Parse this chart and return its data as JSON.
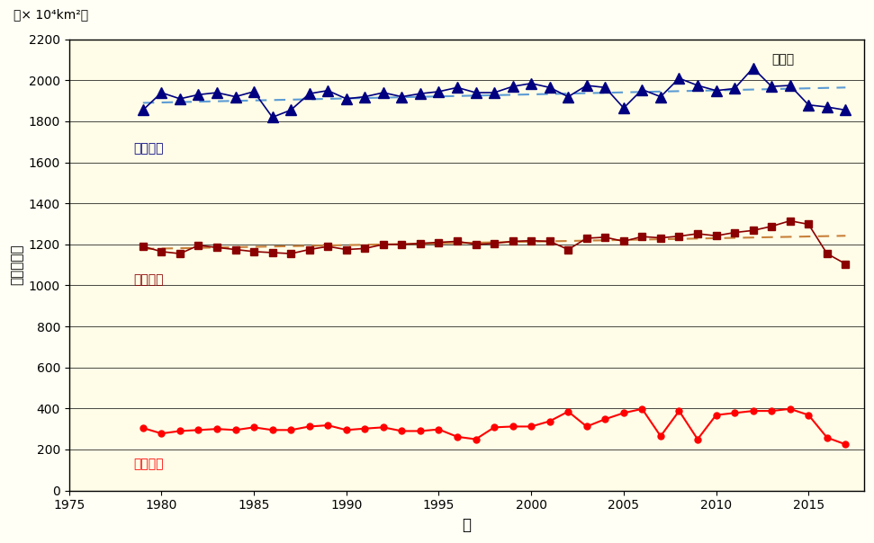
{
  "years": [
    1979,
    1980,
    1981,
    1982,
    1983,
    1984,
    1985,
    1986,
    1987,
    1988,
    1989,
    1990,
    1991,
    1992,
    1993,
    1994,
    1995,
    1996,
    1997,
    1998,
    1999,
    2000,
    2001,
    2002,
    2003,
    2004,
    2005,
    2006,
    2007,
    2008,
    2009,
    2010,
    2011,
    2012,
    2013,
    2014,
    2015,
    2016,
    2017
  ],
  "max_values": [
    1855,
    1940,
    1910,
    1930,
    1940,
    1920,
    1945,
    1820,
    1855,
    1935,
    1950,
    1910,
    1920,
    1940,
    1920,
    1935,
    1945,
    1965,
    1940,
    1940,
    1970,
    1985,
    1965,
    1920,
    1975,
    1965,
    1865,
    1955,
    1920,
    2010,
    1975,
    1950,
    1960,
    2060,
    1970,
    1975,
    1880,
    1870,
    1855
  ],
  "mean_values": [
    1190,
    1165,
    1155,
    1195,
    1185,
    1175,
    1165,
    1160,
    1155,
    1175,
    1190,
    1175,
    1180,
    1200,
    1200,
    1205,
    1210,
    1215,
    1200,
    1205,
    1215,
    1218,
    1215,
    1175,
    1230,
    1235,
    1215,
    1238,
    1232,
    1240,
    1252,
    1242,
    1258,
    1268,
    1288,
    1315,
    1298,
    1155,
    1105
  ],
  "min_values": [
    305,
    278,
    290,
    295,
    300,
    295,
    308,
    295,
    295,
    312,
    318,
    295,
    302,
    308,
    290,
    290,
    298,
    262,
    250,
    308,
    312,
    312,
    338,
    385,
    312,
    348,
    378,
    398,
    265,
    388,
    250,
    368,
    378,
    388,
    388,
    398,
    368,
    258,
    225
  ],
  "max_trend_x": [
    1979,
    2017
  ],
  "max_trend_y": [
    1890,
    1965
  ],
  "mean_trend_x": [
    1979,
    2017
  ],
  "mean_trend_y": [
    1178,
    1242
  ],
  "bg_color": "#FFFFF5",
  "plot_bg_color": "#FFFDE7",
  "blue_color": "#000080",
  "dashed_blue": "#5B9BD5",
  "dark_red_color": "#8B0000",
  "dashed_orange": "#C8803A",
  "red_color": "#FF0000",
  "annotation_title": "南極域",
  "ylabel": "海氷域面積",
  "xlabel": "年",
  "unit_label": "（× 10⁴km²）",
  "max_label": "年最大値",
  "mean_label": "年平均値",
  "min_label": "年最小値",
  "ylim": [
    0,
    2200
  ],
  "xlim": [
    1975,
    2018
  ]
}
